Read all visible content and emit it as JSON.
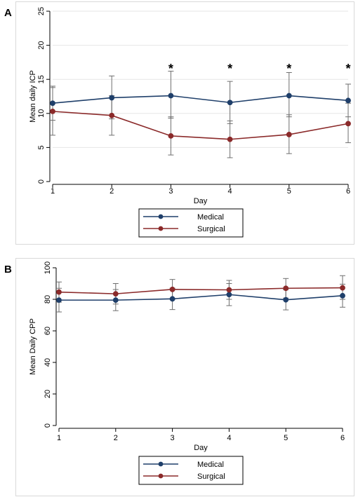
{
  "panels": [
    {
      "label": "A",
      "chart_data": {
        "type": "line",
        "x": [
          1,
          2,
          3,
          4,
          5,
          6
        ],
        "xlabel": "Day",
        "ylabel": "Mean daily ICP",
        "ylim": [
          0,
          25
        ],
        "yticks": [
          0,
          5,
          10,
          15,
          20,
          25
        ],
        "xticks": [
          1,
          2,
          3,
          4,
          5,
          6
        ],
        "grid": "horizontal",
        "legend_position": "bottom-center",
        "series": [
          {
            "name": "Medical",
            "color": "#1f3f6a",
            "values": [
              11.5,
              12.3,
              12.6,
              11.6,
              12.6,
              11.9
            ],
            "error_low": [
              9.0,
              9.2,
              9.3,
              8.5,
              9.5,
              9.5
            ],
            "error_high": [
              14.0,
              15.5,
              16.2,
              14.7,
              16.0,
              14.3
            ]
          },
          {
            "name": "Surgical",
            "color": "#8b2a2a",
            "values": [
              10.3,
              9.7,
              6.7,
              6.2,
              6.9,
              8.5
            ],
            "error_low": [
              6.8,
              6.8,
              3.9,
              3.5,
              4.1,
              5.7
            ],
            "error_high": [
              13.8,
              12.6,
              9.5,
              8.9,
              9.8,
              11.5
            ]
          }
        ],
        "annotations": [
          {
            "x": 3,
            "text": "*"
          },
          {
            "x": 4,
            "text": "*"
          },
          {
            "x": 5,
            "text": "*"
          },
          {
            "x": 6,
            "text": "*"
          }
        ]
      }
    },
    {
      "label": "B",
      "chart_data": {
        "type": "line",
        "x": [
          1,
          2,
          3,
          4,
          5,
          6
        ],
        "xlabel": "Day",
        "ylabel": "Mean Daily CPP",
        "ylim": [
          0,
          100
        ],
        "yticks": [
          0,
          20,
          40,
          60,
          80,
          100
        ],
        "xticks": [
          1,
          2,
          3,
          4,
          5,
          6
        ],
        "grid": "none",
        "legend_position": "bottom-center",
        "series": [
          {
            "name": "Medical",
            "color": "#1f3f6a",
            "values": [
              79.5,
              79.5,
              80.3,
              83.0,
              79.7,
              82.3
            ],
            "error_low": [
              72.0,
              72.8,
              73.5,
              76.0,
              73.3,
              75.0
            ],
            "error_high": [
              87.0,
              86.2,
              87.1,
              90.0,
              86.1,
              89.6
            ]
          },
          {
            "name": "Surgical",
            "color": "#8b2a2a",
            "values": [
              84.6,
              83.5,
              86.3,
              86.0,
              87.0,
              87.3
            ],
            "error_low": [
              78.2,
              77.0,
              80.0,
              80.0,
              80.8,
              80.0
            ],
            "error_high": [
              91.0,
              90.0,
              92.6,
              92.0,
              93.2,
              95.0
            ]
          }
        ],
        "annotations": []
      }
    }
  ]
}
